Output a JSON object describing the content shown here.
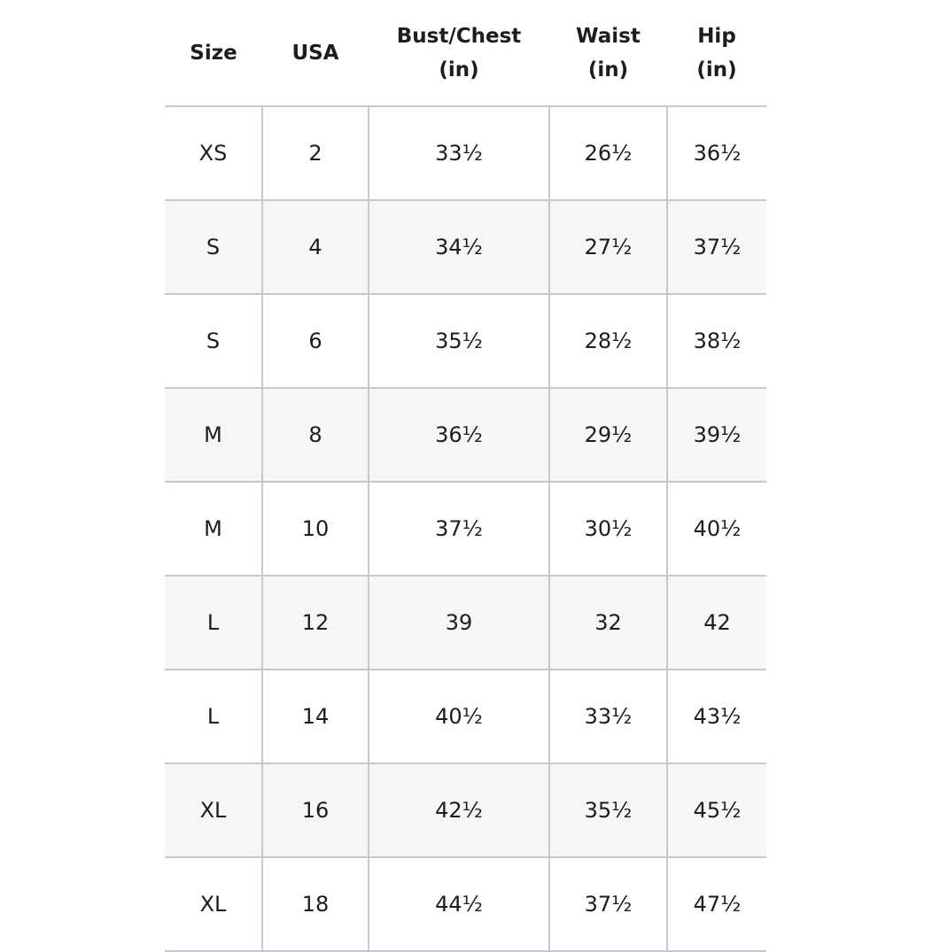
{
  "headers": [
    "Size",
    "USA",
    "Bust/Chest\n(in)",
    "Waist\n(in)",
    "Hip\n(in)"
  ],
  "header_lines": [
    [
      "Size"
    ],
    [
      "USA"
    ],
    [
      "Bust/Chest",
      "(in)"
    ],
    [
      "Waist",
      "(in)"
    ],
    [
      "Hip",
      "(in)"
    ]
  ],
  "rows": [
    [
      "XS",
      "2",
      "33½",
      "26½",
      "36½"
    ],
    [
      "S",
      "4",
      "34½",
      "27½",
      "37½"
    ],
    [
      "S",
      "6",
      "35½",
      "28½",
      "38½"
    ],
    [
      "M",
      "8",
      "36½",
      "29½",
      "39½"
    ],
    [
      "M",
      "10",
      "37½",
      "30½",
      "40½"
    ],
    [
      "L",
      "12",
      "39",
      "32",
      "42"
    ],
    [
      "L",
      "14",
      "40½",
      "33½",
      "43½"
    ],
    [
      "XL",
      "16",
      "42½",
      "35½",
      "45½"
    ],
    [
      "XL",
      "18",
      "44½",
      "37½",
      "47½"
    ]
  ],
  "colors": {
    "grid": "#c8c8cc",
    "alt_row": "#f6f6f6",
    "text": "#1d1d1d"
  }
}
